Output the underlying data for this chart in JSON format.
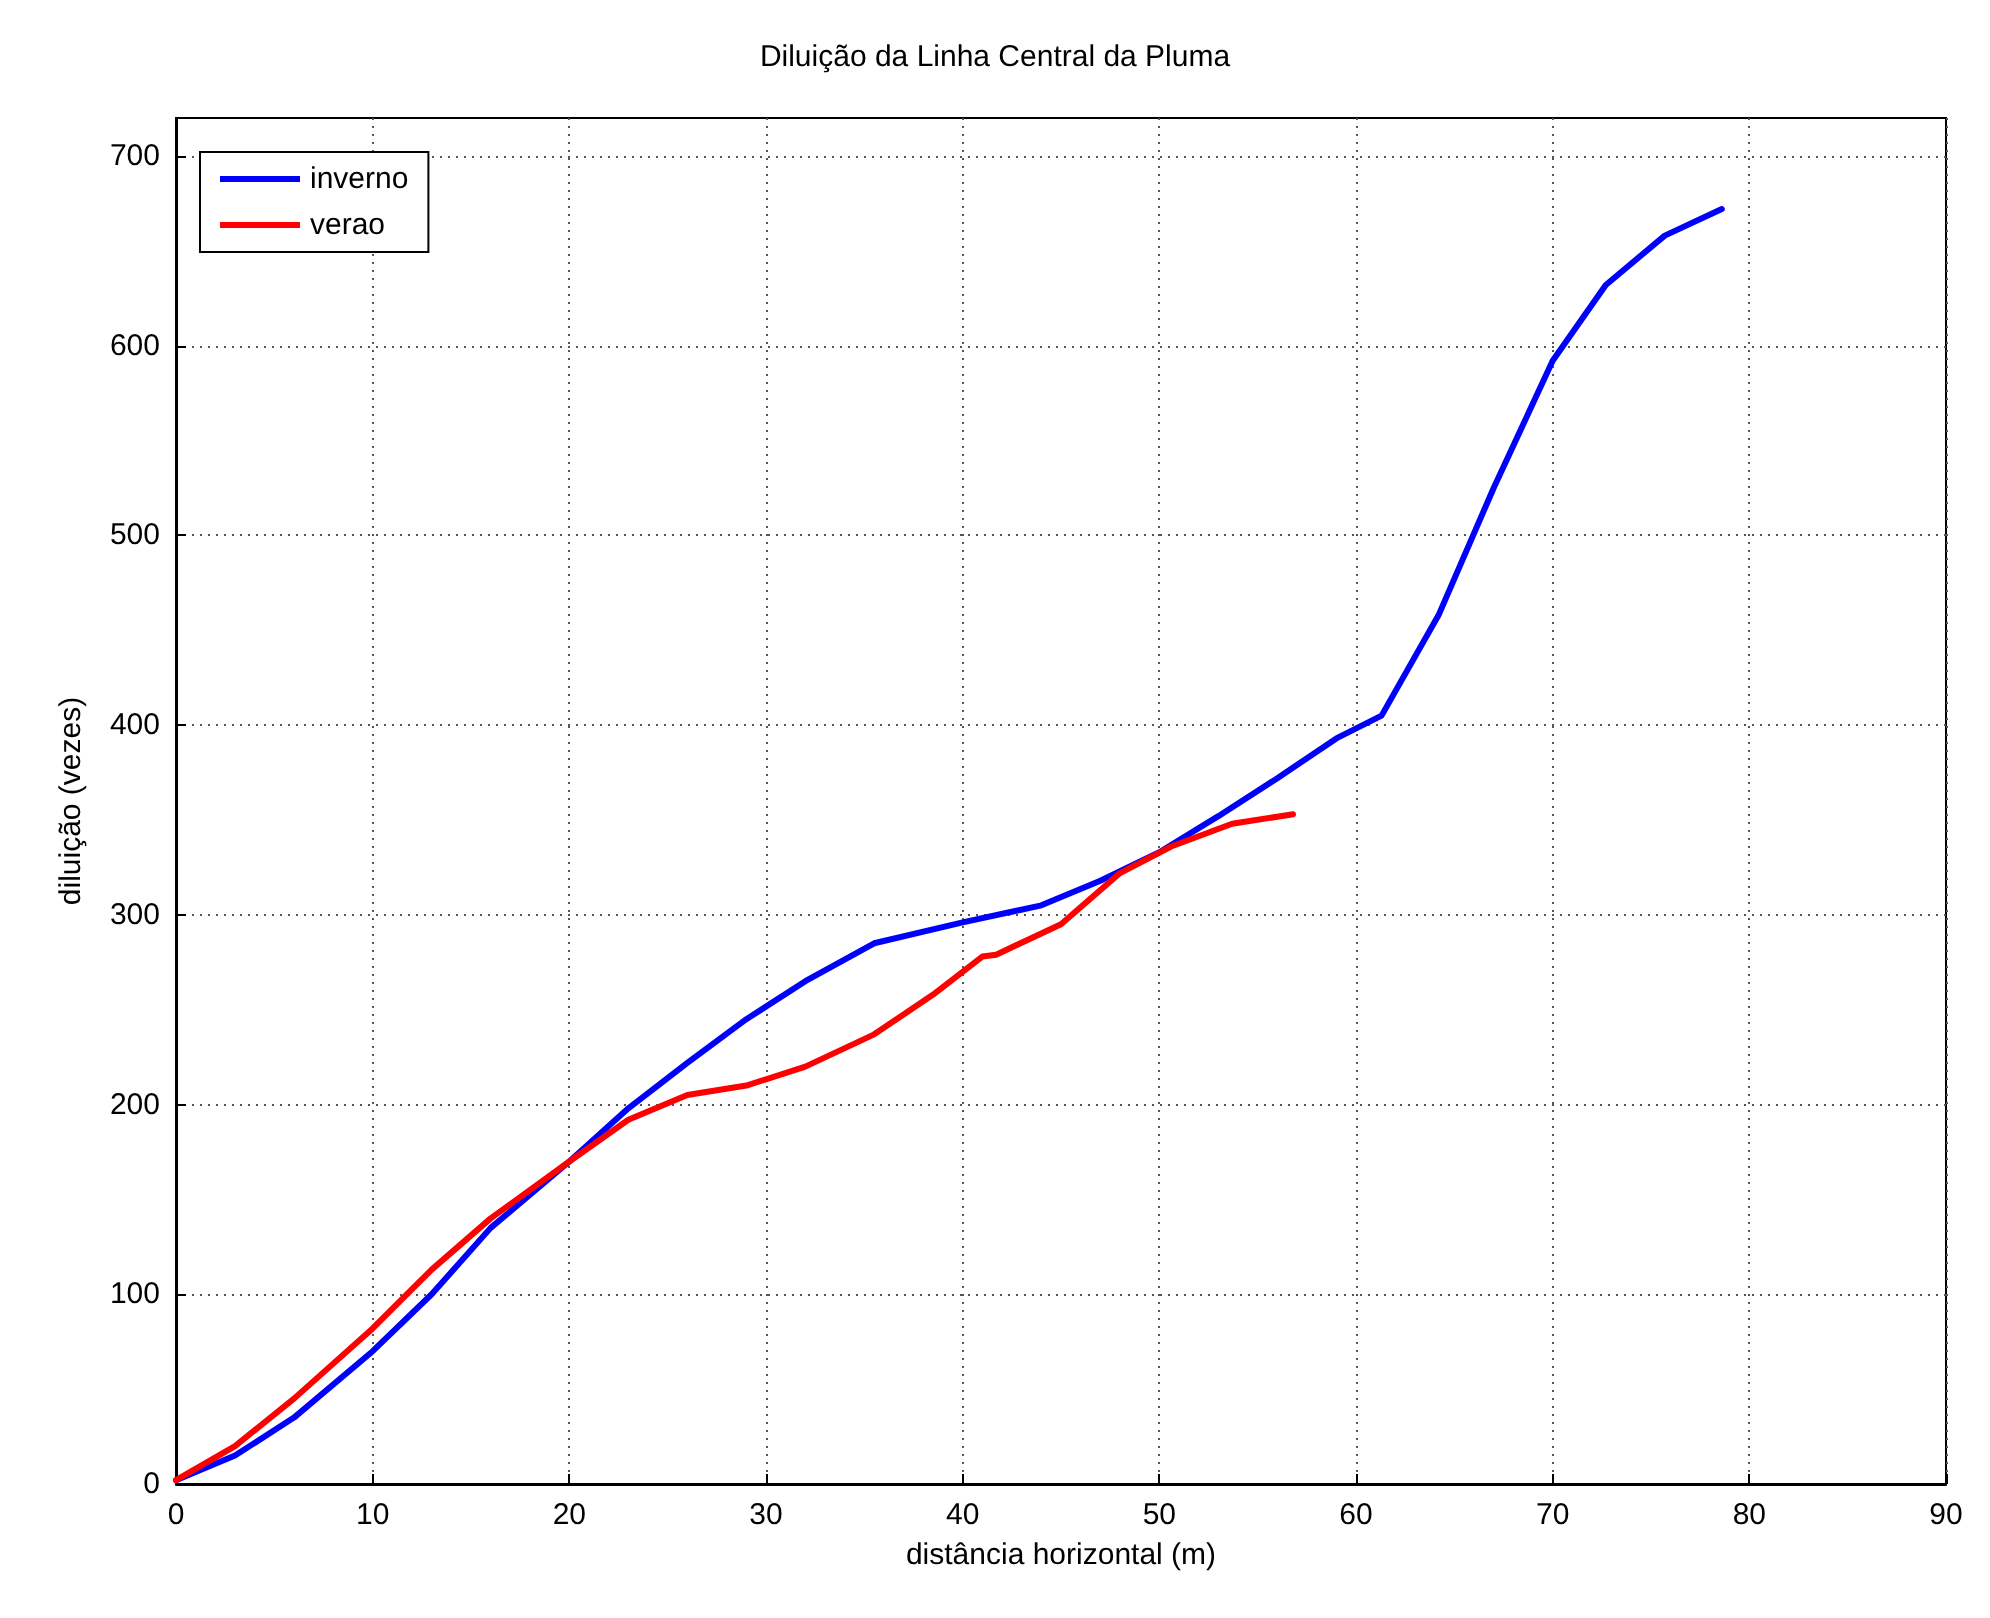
{
  "chart_data": {
    "type": "line",
    "title": "Diluição da Linha Central da Pluma",
    "xlabel": "distância horizontal (m)",
    "ylabel": "diluição (vezes)",
    "xlim": [
      0,
      90
    ],
    "xticks": [
      0,
      10,
      20,
      30,
      40,
      50,
      60,
      70,
      80,
      90
    ],
    "ylim": [
      0,
      720
    ],
    "yticks": [
      0,
      100,
      200,
      300,
      400,
      500,
      600,
      700
    ],
    "grid": true,
    "legend": "top left",
    "marker": "none",
    "line_style": "solid",
    "series": [
      {
        "name": "inverno",
        "color": "#0000ff",
        "x": [
          0,
          3,
          6,
          10,
          13,
          16,
          20,
          23,
          26,
          29,
          32,
          35.5,
          40,
          44,
          47,
          50,
          53,
          56,
          59,
          61.3,
          64.2,
          67,
          70,
          72.7,
          75.7,
          78.6
        ],
        "values": [
          2,
          15,
          35,
          70,
          100,
          135,
          170,
          198,
          222,
          245,
          265,
          285,
          296,
          305,
          318,
          333,
          352,
          372,
          393,
          405,
          458,
          525,
          592,
          632,
          658,
          672
        ]
      },
      {
        "name": "verao",
        "color": "#ff0000",
        "x": [
          0,
          3,
          6,
          10,
          13,
          16,
          20,
          23,
          26,
          29,
          32,
          35.5,
          38.5,
          41,
          41.7,
          45,
          48,
          50.6,
          53.7,
          56.8
        ],
        "values": [
          2,
          20,
          45,
          82,
          113,
          140,
          170,
          192,
          205,
          210,
          220,
          237,
          258,
          278,
          279,
          295,
          322,
          336,
          348,
          353
        ]
      }
    ]
  }
}
